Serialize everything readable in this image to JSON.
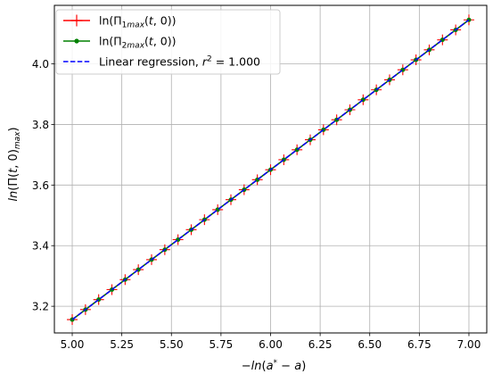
{
  "chart_data": {
    "type": "line",
    "xlabel": "−ln(a* − a)",
    "ylabel": "ln(Π(t, 0)max)",
    "xlim": [
      4.91,
      7.09
    ],
    "ylim": [
      3.112,
      4.193
    ],
    "xticks": [
      5.0,
      5.25,
      5.5,
      5.75,
      6.0,
      6.25,
      6.5,
      6.75,
      7.0
    ],
    "xtick_labels": [
      "5.00",
      "5.25",
      "5.50",
      "5.75",
      "6.00",
      "6.25",
      "6.50",
      "6.75",
      "7.00"
    ],
    "yticks": [
      3.2,
      3.4,
      3.6,
      3.8,
      4.0
    ],
    "ytick_labels": [
      "3.2",
      "3.4",
      "3.6",
      "3.8",
      "4.0"
    ],
    "grid": true,
    "legend_position": "top-left",
    "series": [
      {
        "name": "ln(Π1max(t, 0))",
        "color": "#ff0000",
        "marker": "plus",
        "x": [
          5.0,
          5.0667,
          5.1333,
          5.2,
          5.2667,
          5.3333,
          5.4,
          5.4667,
          5.5333,
          5.6,
          5.6667,
          5.7333,
          5.8,
          5.8667,
          5.9333,
          6.0,
          6.0667,
          6.1333,
          6.2,
          6.2667,
          6.3333,
          6.4,
          6.4667,
          6.5333,
          6.6,
          6.6667,
          6.7333,
          6.8,
          6.8667,
          6.9333,
          7.0
        ],
        "y": [
          3.156,
          3.189,
          3.222,
          3.2549,
          3.2879,
          3.3209,
          3.3538,
          3.3868,
          3.4198,
          3.4527,
          3.4857,
          3.5187,
          3.5517,
          3.5846,
          3.6176,
          3.6506,
          3.6835,
          3.7165,
          3.7495,
          3.7824,
          3.8154,
          3.8484,
          3.8814,
          3.9143,
          3.9473,
          3.9803,
          4.0132,
          4.0462,
          4.0792,
          4.1121,
          4.1451
        ]
      },
      {
        "name": "ln(Π2max(t, 0))",
        "color": "#008000",
        "marker": "dot",
        "x": [
          5.0,
          5.0667,
          5.1333,
          5.2,
          5.2667,
          5.3333,
          5.4,
          5.4667,
          5.5333,
          5.6,
          5.6667,
          5.7333,
          5.8,
          5.8667,
          5.9333,
          6.0,
          6.0667,
          6.1333,
          6.2,
          6.2667,
          6.3333,
          6.4,
          6.4667,
          6.5333,
          6.6,
          6.6667,
          6.7333,
          6.8,
          6.8667,
          6.9333,
          7.0
        ],
        "y": [
          3.156,
          3.189,
          3.222,
          3.2549,
          3.2879,
          3.3209,
          3.3538,
          3.3868,
          3.4198,
          3.4527,
          3.4857,
          3.5187,
          3.5517,
          3.5846,
          3.6176,
          3.6506,
          3.6835,
          3.7165,
          3.7495,
          3.7824,
          3.8154,
          3.8484,
          3.8814,
          3.9143,
          3.9473,
          3.9803,
          4.0132,
          4.0462,
          4.0792,
          4.1121,
          4.1451
        ]
      },
      {
        "name": "Linear regression, r² = 1.000",
        "color": "#0000ff",
        "style": "dashed",
        "x": [
          5.0,
          7.0
        ],
        "y": [
          3.156,
          4.1451
        ]
      }
    ]
  }
}
